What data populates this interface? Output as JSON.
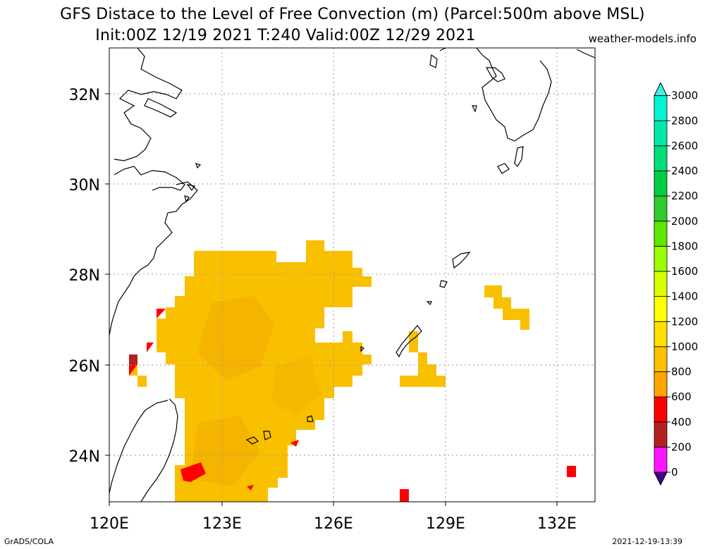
{
  "header": {
    "title_line1": "GFS Distace to the Level of Free Convection (m) (Parcel:500m above MSL)",
    "title_line2": "Init:00Z 12/19 2021 T:240 Valid:00Z 12/29 2021",
    "credit": "weather-models.info"
  },
  "footer": {
    "left": "GrADS/COLA",
    "right": "2021-12-19-13:39"
  },
  "map": {
    "lon_ticks": [
      "120E",
      "123E",
      "126E",
      "129E",
      "132E"
    ],
    "lat_ticks": [
      "24N",
      "26N",
      "28N",
      "30N",
      "32N"
    ],
    "grid": true,
    "land_outline_color": "#000000",
    "field_main_color": "#f9c000"
  },
  "colorbar": {
    "labels": [
      "0",
      "200",
      "400",
      "600",
      "800",
      "1000",
      "1200",
      "1400",
      "1600",
      "1800",
      "2000",
      "2200",
      "2400",
      "2600",
      "2800",
      "3000"
    ],
    "colors": [
      "#4b0082",
      "#ff14ff",
      "#b22222",
      "#ff0000",
      "#ffa500",
      "#ffc000",
      "#ffe000",
      "#ffff00",
      "#d7ff00",
      "#9aff00",
      "#5ce600",
      "#2ecc2e",
      "#00cc44",
      "#00dd77",
      "#00e8aa",
      "#00f5d2",
      "#40f0e8"
    ]
  }
}
